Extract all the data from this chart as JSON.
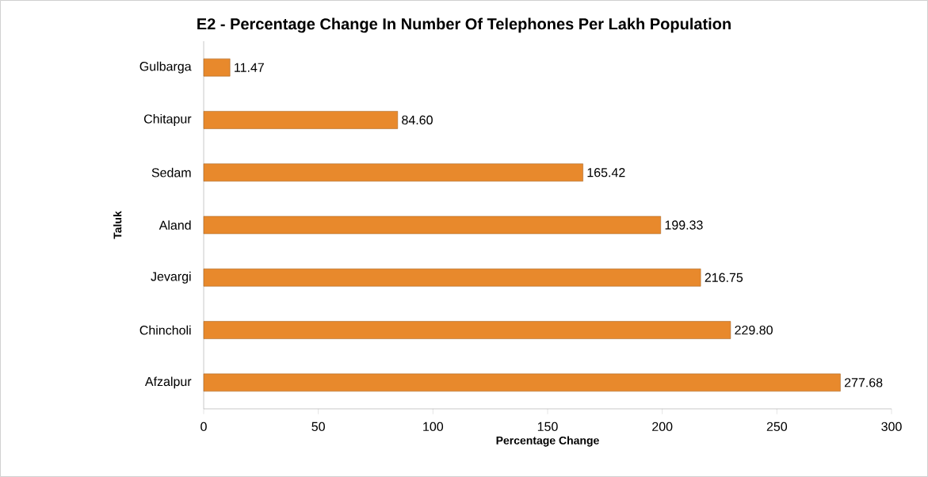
{
  "chart_data": {
    "type": "bar",
    "orientation": "horizontal",
    "title": "E2 - Percentage Change In Number Of Telephones Per Lakh Population",
    "xlabel": "Percentage Change",
    "ylabel": "Taluk",
    "categories": [
      "Gulbarga",
      "Chitapur",
      "Sedam",
      "Aland",
      "Jevargi",
      "Chincholi",
      "Afzalpur"
    ],
    "values": [
      11.47,
      84.6,
      165.42,
      199.33,
      216.75,
      229.8,
      277.68
    ],
    "value_labels": [
      "11.47",
      "84.60",
      "165.42",
      "199.33",
      "216.75",
      "229.80",
      "277.68"
    ],
    "color": "#e8892c",
    "xlim": [
      0,
      300
    ],
    "xticks": [
      0,
      50,
      100,
      150,
      200,
      250,
      300
    ]
  }
}
